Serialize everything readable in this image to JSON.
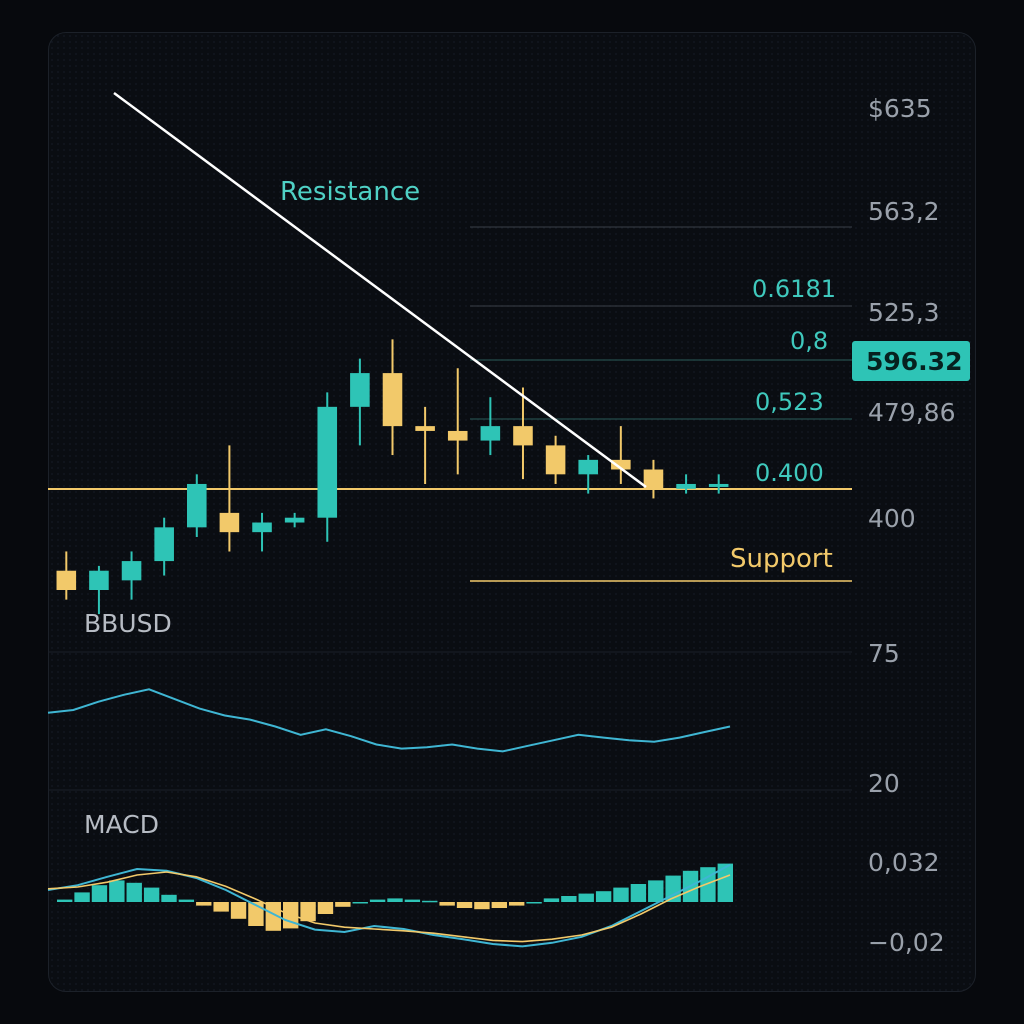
{
  "colors": {
    "bull": "#2ec4b6",
    "bear": "#f2c96a",
    "resistance_line": "#ffffff",
    "support_line": "#f2c96a",
    "fib_line": "#3a4048",
    "indicator_line": "#3fb6d3",
    "signal_line": "#f2c96a",
    "price_tag": "#2ec4b6"
  },
  "labels": {
    "resistance": "Resistance",
    "support": "Support",
    "price_tag": "596.32"
  },
  "chart_data": [
    {
      "type": "candlestick",
      "title": "",
      "price_axis_labels": [
        "$635",
        "563,2",
        "525,3",
        "479,86",
        "400"
      ],
      "fib_levels": [
        "0.6181",
        "0,8",
        "0,523",
        "0.400"
      ],
      "current_price": "596.32",
      "grid": false,
      "candles": [
        {
          "o": 0.04,
          "h": 0.08,
          "l": -0.02,
          "c": 0.0
        },
        {
          "o": 0.0,
          "h": 0.05,
          "l": -0.05,
          "c": 0.04
        },
        {
          "o": 0.02,
          "h": 0.08,
          "l": -0.02,
          "c": 0.06
        },
        {
          "o": 0.06,
          "h": 0.15,
          "l": 0.03,
          "c": 0.13
        },
        {
          "o": 0.13,
          "h": 0.24,
          "l": 0.11,
          "c": 0.22
        },
        {
          "o": 0.16,
          "h": 0.3,
          "l": 0.08,
          "c": 0.12
        },
        {
          "o": 0.12,
          "h": 0.16,
          "l": 0.08,
          "c": 0.14
        },
        {
          "o": 0.14,
          "h": 0.16,
          "l": 0.13,
          "c": 0.15
        },
        {
          "o": 0.15,
          "h": 0.41,
          "l": 0.1,
          "c": 0.38
        },
        {
          "o": 0.38,
          "h": 0.48,
          "l": 0.3,
          "c": 0.45
        },
        {
          "o": 0.45,
          "h": 0.52,
          "l": 0.28,
          "c": 0.34
        },
        {
          "o": 0.34,
          "h": 0.38,
          "l": 0.22,
          "c": 0.33
        },
        {
          "o": 0.33,
          "h": 0.46,
          "l": 0.24,
          "c": 0.31
        },
        {
          "o": 0.31,
          "h": 0.4,
          "l": 0.28,
          "c": 0.34
        },
        {
          "o": 0.34,
          "h": 0.42,
          "l": 0.23,
          "c": 0.3
        },
        {
          "o": 0.3,
          "h": 0.32,
          "l": 0.22,
          "c": 0.24
        },
        {
          "o": 0.24,
          "h": 0.28,
          "l": 0.2,
          "c": 0.27
        },
        {
          "o": 0.27,
          "h": 0.34,
          "l": 0.22,
          "c": 0.25
        },
        {
          "o": 0.25,
          "h": 0.27,
          "l": 0.19,
          "c": 0.21
        },
        {
          "o": 0.21,
          "h": 0.24,
          "l": 0.2,
          "c": 0.22
        },
        {
          "o": 0.22,
          "h": 0.24,
          "l": 0.2,
          "c": 0.22
        }
      ]
    },
    {
      "type": "line",
      "title": "BBUSD",
      "y_axis_labels": [
        "75",
        "20"
      ],
      "grid": false,
      "values": [
        0.56,
        0.58,
        0.64,
        0.69,
        0.73,
        0.66,
        0.59,
        0.54,
        0.51,
        0.46,
        0.4,
        0.44,
        0.39,
        0.33,
        0.3,
        0.31,
        0.33,
        0.3,
        0.28,
        0.32,
        0.36,
        0.4,
        0.38,
        0.36,
        0.35,
        0.38,
        0.42,
        0.46
      ]
    },
    {
      "type": "bar+line",
      "title": "MACD",
      "y_axis_labels": [
        "0,032",
        "−0,02"
      ],
      "grid": false,
      "histogram": [
        0.02,
        0.08,
        0.14,
        0.18,
        0.16,
        0.12,
        0.06,
        0.02,
        -0.03,
        -0.08,
        -0.14,
        -0.2,
        -0.24,
        -0.22,
        -0.16,
        -0.1,
        -0.04,
        0.0,
        0.02,
        0.03,
        0.02,
        0.01,
        -0.03,
        -0.05,
        -0.06,
        -0.05,
        -0.03,
        0.0,
        0.03,
        0.05,
        0.07,
        0.09,
        0.12,
        0.15,
        0.18,
        0.22,
        0.26,
        0.29,
        0.32
      ],
      "macd_line": [
        0.2,
        0.28,
        0.42,
        0.55,
        0.52,
        0.4,
        0.2,
        -0.05,
        -0.3,
        -0.46,
        -0.5,
        -0.4,
        -0.45,
        -0.55,
        -0.62,
        -0.7,
        -0.74,
        -0.68,
        -0.58,
        -0.4,
        -0.15,
        0.1,
        0.35,
        0.62
      ],
      "signal_line": [
        0.22,
        0.25,
        0.33,
        0.45,
        0.5,
        0.42,
        0.26,
        0.05,
        -0.18,
        -0.35,
        -0.42,
        -0.45,
        -0.48,
        -0.52,
        -0.58,
        -0.64,
        -0.66,
        -0.62,
        -0.55,
        -0.42,
        -0.2,
        0.05,
        0.26,
        0.45
      ]
    }
  ]
}
